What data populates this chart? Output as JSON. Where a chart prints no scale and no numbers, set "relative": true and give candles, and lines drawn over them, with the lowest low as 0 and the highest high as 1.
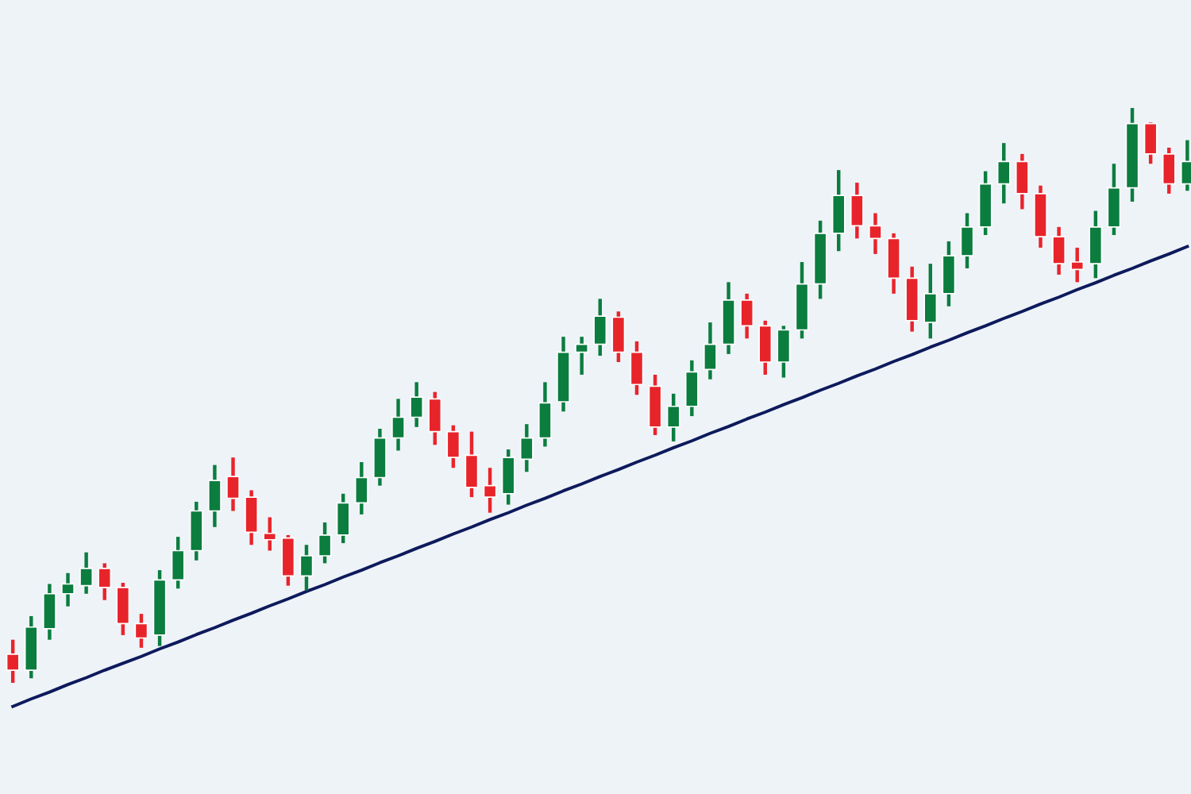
{
  "chart_data": {
    "type": "candlestick",
    "relative": true,
    "categories": [
      null,
      null,
      null,
      null,
      null,
      null,
      null,
      null,
      null,
      null,
      null,
      null,
      null,
      null,
      null,
      null,
      null,
      null,
      null,
      null,
      null,
      null,
      null,
      null,
      null,
      null,
      null,
      null,
      null,
      null,
      null,
      null,
      null,
      null,
      null,
      null,
      null,
      null,
      null,
      null,
      null,
      null,
      null,
      null,
      null,
      null,
      null,
      null,
      null,
      null,
      null,
      null,
      null,
      null,
      null,
      null,
      null,
      null,
      null,
      null,
      null,
      null,
      null,
      null,
      null
    ],
    "ohlc": [
      [
        0.05,
        0.075,
        0,
        0.022
      ],
      [
        0.022,
        0.116,
        0.008,
        0.097
      ],
      [
        0.094,
        0.172,
        0.075,
        0.155
      ],
      [
        0.155,
        0.191,
        0.133,
        0.172
      ],
      [
        0.169,
        0.227,
        0.155,
        0.199
      ],
      [
        0.199,
        0.208,
        0.144,
        0.166
      ],
      [
        0.166,
        0.174,
        0.083,
        0.103
      ],
      [
        0.103,
        0.12,
        0.061,
        0.078
      ],
      [
        0.083,
        0.196,
        0.064,
        0.179
      ],
      [
        0.179,
        0.254,
        0.164,
        0.23
      ],
      [
        0.23,
        0.315,
        0.213,
        0.299
      ],
      [
        0.299,
        0.379,
        0.271,
        0.352
      ],
      [
        0.359,
        0.392,
        0.299,
        0.321
      ],
      [
        0.323,
        0.335,
        0.24,
        0.262
      ],
      [
        0.26,
        0.288,
        0.23,
        0.249
      ],
      [
        0.252,
        0.257,
        0.169,
        0.186
      ],
      [
        0.186,
        0.24,
        0.161,
        0.221
      ],
      [
        0.221,
        0.279,
        0.208,
        0.257
      ],
      [
        0.257,
        0.329,
        0.243,
        0.313
      ],
      [
        0.313,
        0.384,
        0.293,
        0.357
      ],
      [
        0.357,
        0.442,
        0.343,
        0.426
      ],
      [
        0.426,
        0.494,
        0.404,
        0.462
      ],
      [
        0.462,
        0.523,
        0.445,
        0.497
      ],
      [
        0.494,
        0.506,
        0.414,
        0.437
      ],
      [
        0.437,
        0.448,
        0.374,
        0.392
      ],
      [
        0.396,
        0.437,
        0.323,
        0.34
      ],
      [
        0.343,
        0.374,
        0.296,
        0.323
      ],
      [
        0.329,
        0.406,
        0.31,
        0.392
      ],
      [
        0.389,
        0.45,
        0.367,
        0.426
      ],
      [
        0.426,
        0.523,
        0.411,
        0.487
      ],
      [
        0.489,
        0.602,
        0.472,
        0.575
      ],
      [
        0.575,
        0.602,
        0.536,
        0.589
      ],
      [
        0.589,
        0.668,
        0.569,
        0.638
      ],
      [
        0.636,
        0.646,
        0.558,
        0.575
      ],
      [
        0.575,
        0.594,
        0.501,
        0.519
      ],
      [
        0.516,
        0.536,
        0.431,
        0.445
      ],
      [
        0.445,
        0.503,
        0.42,
        0.481
      ],
      [
        0.481,
        0.561,
        0.464,
        0.541
      ],
      [
        0.545,
        0.627,
        0.528,
        0.589
      ],
      [
        0.589,
        0.697,
        0.572,
        0.666
      ],
      [
        0.666,
        0.677,
        0.599,
        0.621
      ],
      [
        0.621,
        0.63,
        0.536,
        0.558
      ],
      [
        0.558,
        0.621,
        0.531,
        0.614
      ],
      [
        0.614,
        0.732,
        0.599,
        0.694
      ],
      [
        0.694,
        0.804,
        0.668,
        0.782
      ],
      [
        0.782,
        0.892,
        0.751,
        0.848
      ],
      [
        0.848,
        0.87,
        0.773,
        0.795
      ],
      [
        0.795,
        0.817,
        0.746,
        0.773
      ],
      [
        0.773,
        0.782,
        0.677,
        0.704
      ],
      [
        0.704,
        0.724,
        0.611,
        0.63
      ],
      [
        0.627,
        0.729,
        0.599,
        0.677
      ],
      [
        0.677,
        0.768,
        0.655,
        0.743
      ],
      [
        0.743,
        0.817,
        0.721,
        0.793
      ],
      [
        0.793,
        0.89,
        0.779,
        0.868
      ],
      [
        0.868,
        0.939,
        0.834,
        0.907
      ],
      [
        0.907,
        0.92,
        0.824,
        0.851
      ],
      [
        0.851,
        0.865,
        0.757,
        0.776
      ],
      [
        0.776,
        0.793,
        0.71,
        0.729
      ],
      [
        0.732,
        0.757,
        0.697,
        0.719
      ],
      [
        0.729,
        0.821,
        0.704,
        0.793
      ],
      [
        0.793,
        0.903,
        0.779,
        0.861
      ],
      [
        0.861,
        1,
        0.837,
        0.973
      ],
      [
        0.973,
        0.975,
        0.903,
        0.92
      ],
      [
        0.92,
        0.931,
        0.851,
        0.868
      ],
      [
        0.868,
        0.944,
        0.856,
        0.907
      ]
    ],
    "colors": [
      "#e8242b",
      "#0b7d3f",
      "#0b7d3f",
      "#0b7d3f",
      "#0b7d3f",
      "#e8242b",
      "#e8242b",
      "#e8242b",
      "#0b7d3f",
      "#0b7d3f",
      "#0b7d3f",
      "#0b7d3f",
      "#e8242b",
      "#e8242b",
      "#e8242b",
      "#e8242b",
      "#0b7d3f",
      "#0b7d3f",
      "#0b7d3f",
      "#0b7d3f",
      "#0b7d3f",
      "#0b7d3f",
      "#0b7d3f",
      "#e8242b",
      "#e8242b",
      "#e8242b",
      "#e8242b",
      "#0b7d3f",
      "#0b7d3f",
      "#0b7d3f",
      "#0b7d3f",
      "#0b7d3f",
      "#0b7d3f",
      "#e8242b",
      "#e8242b",
      "#e8242b",
      "#0b7d3f",
      "#0b7d3f",
      "#0b7d3f",
      "#0b7d3f",
      "#e8242b",
      "#e8242b",
      "#0b7d3f",
      "#0b7d3f",
      "#0b7d3f",
      "#0b7d3f",
      "#e8242b",
      "#e8242b",
      "#e8242b",
      "#e8242b",
      "#0b7d3f",
      "#0b7d3f",
      "#0b7d3f",
      "#0b7d3f",
      "#0b7d3f",
      "#e8242b",
      "#e8242b",
      "#e8242b",
      "#e8242b",
      "#0b7d3f",
      "#0b7d3f",
      "#0b7d3f",
      "#e8242b",
      "#e8242b",
      "#0b7d3f"
    ],
    "series": [
      {
        "type": "line",
        "values": [
          -0.041,
          -0.028,
          -0.016,
          -0.003,
          0.009,
          0.022,
          0.034,
          0.046,
          0.059,
          0.071,
          0.084,
          0.096,
          0.109,
          0.121,
          0.134,
          0.146,
          0.159,
          0.171,
          0.184,
          0.196,
          0.209,
          0.221,
          0.234,
          0.246,
          0.259,
          0.271,
          0.284,
          0.296,
          0.309,
          0.321,
          0.334,
          0.346,
          0.359,
          0.371,
          0.384,
          0.396,
          0.409,
          0.421,
          0.434,
          0.446,
          0.459,
          0.471,
          0.484,
          0.496,
          0.509,
          0.521,
          0.534,
          0.546,
          0.559,
          0.571,
          0.584,
          0.596,
          0.609,
          0.621,
          0.634,
          0.646,
          0.659,
          0.671,
          0.684,
          0.696,
          0.709,
          0.721,
          0.734,
          0.746,
          0.759
        ],
        "color": "#0d1a5c"
      }
    ]
  }
}
